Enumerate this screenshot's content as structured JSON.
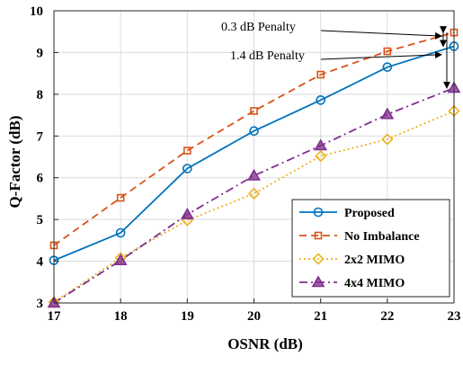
{
  "chart_data": {
    "type": "line",
    "title": "",
    "xlabel": "OSNR (dB)",
    "ylabel": "Q-Factor (dB)",
    "xlim": [
      17,
      23
    ],
    "ylim": [
      3,
      10
    ],
    "x": [
      17,
      18,
      19,
      20,
      21,
      22,
      23
    ],
    "x_ticks": [
      "17",
      "18",
      "19",
      "20",
      "21",
      "22",
      "23"
    ],
    "y_ticks": [
      "3",
      "4",
      "5",
      "6",
      "7",
      "8",
      "9",
      "10"
    ],
    "grid": true,
    "legend_position": "bottom-right",
    "series": [
      {
        "name": "Proposed",
        "values": [
          4.02,
          4.68,
          6.22,
          7.12,
          7.86,
          8.65,
          9.15
        ],
        "color": "#0072BD",
        "dash": "solid",
        "marker": "circle"
      },
      {
        "name": "No Imbalance",
        "values": [
          4.38,
          5.52,
          6.65,
          7.6,
          8.47,
          9.03,
          9.48
        ],
        "color": "#D95319",
        "dash": "dashed",
        "marker": "square"
      },
      {
        "name": "2x2 MIMO",
        "values": [
          3.02,
          4.08,
          4.98,
          5.62,
          6.52,
          6.92,
          7.6
        ],
        "color": "#EDB120",
        "dash": "dotted",
        "marker": "diamond"
      },
      {
        "name": "4x4 MIMO",
        "values": [
          3.0,
          4.02,
          5.12,
          6.05,
          6.77,
          7.52,
          8.15
        ],
        "color": "#7E2F8E",
        "dash": "dashdot",
        "marker": "triangle"
      }
    ],
    "annotations": [
      {
        "text": "0.3 dB Penalty",
        "x": 23,
        "y_from": 9.48,
        "y_to": 9.15
      },
      {
        "text": "1.4 dB  Penalty",
        "x": 23,
        "y_from": 9.48,
        "y_to": 8.15
      }
    ]
  }
}
